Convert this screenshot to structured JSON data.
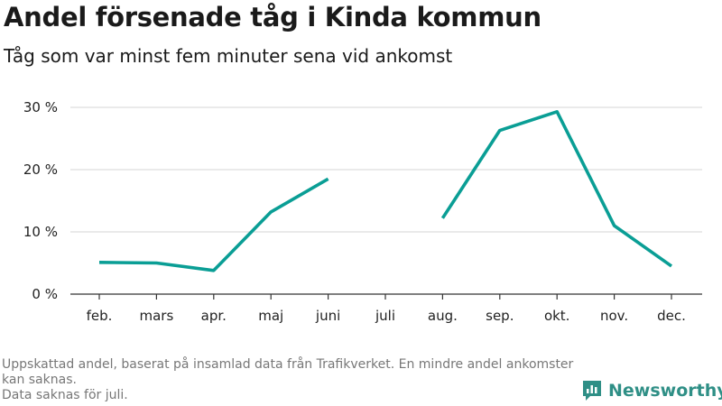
{
  "chart_data": {
    "type": "line",
    "title": "Andel försenade tåg i Kinda kommun",
    "subtitle": "Tåg som var minst fem minuter sena vid ankomst",
    "categories": [
      "feb.",
      "mars",
      "apr.",
      "maj",
      "juni",
      "juli",
      "aug.",
      "sep.",
      "okt.",
      "nov.",
      "dec."
    ],
    "series": [
      {
        "values": [
          5.1,
          5.0,
          3.8,
          13.2,
          18.5,
          null,
          12.2,
          26.3,
          29.3,
          11.0,
          4.5
        ]
      }
    ],
    "ylim": [
      0,
      30
    ],
    "yticks": [
      0,
      10,
      20,
      30
    ],
    "ytick_labels": [
      "0 %",
      "10 %",
      "20 %",
      "30 %"
    ],
    "grid": true,
    "line_color": "#0a9e95",
    "grid_color": "#dddddd"
  },
  "footnote": {
    "line1": "Uppskattad andel, baserat på insamlad data från Trafikverket. En mindre andel ankomster kan saknas.",
    "line2": "Data saknas för juli."
  },
  "brand": {
    "name": "Newsworthy",
    "icon": "newsworthy-logo-icon",
    "color": "#2f8f86"
  }
}
